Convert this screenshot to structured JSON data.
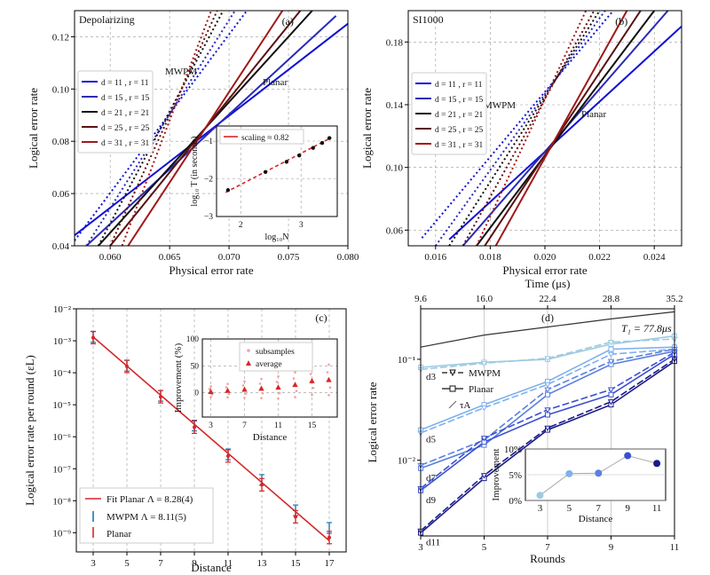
{
  "colors": {
    "dist": [
      "#1010d8",
      "#2a2ab8",
      "#111111",
      "#5a1010",
      "#a01818"
    ],
    "fit": "#d62728",
    "mwpm_err": "#1f77b4",
    "planar_err": "#d62728",
    "d_shades": [
      "#9ecae1",
      "#7fb0ee",
      "#5a7fe0",
      "#3a4fd0",
      "#1a1a8a"
    ],
    "t1": "#333333"
  },
  "chart_data": [
    {
      "id": "a",
      "type": "line",
      "panel_label": "(a)",
      "noise_label": "Depolarizing",
      "xlabel": "Physical error rate",
      "ylabel": "Logical error rate",
      "xlim": [
        0.057,
        0.08
      ],
      "ylim": [
        0.04,
        0.13
      ],
      "xticks": [
        0.06,
        0.065,
        0.07,
        0.075,
        0.08
      ],
      "xtick_labels": [
        "0.060",
        "0.065",
        "0.070",
        "0.075",
        "0.080"
      ],
      "yticks": [
        0.04,
        0.06,
        0.08,
        0.1,
        0.12
      ],
      "ytick_labels": [
        "0.04",
        "0.06",
        "0.08",
        "0.10",
        "0.12"
      ],
      "annotations": [
        "MWPM",
        "Planar"
      ],
      "legend": [
        "d = 11 , r = 11",
        "d = 15 , r = 15",
        "d = 21 , r = 21",
        "d = 25 , r = 25",
        "d = 31 , r = 31"
      ],
      "planar": [
        {
          "x": [
            0.057,
            0.08
          ],
          "y": [
            0.044,
            0.125
          ]
        },
        {
          "x": [
            0.058,
            0.079
          ],
          "y": [
            0.04,
            0.128
          ]
        },
        {
          "x": [
            0.059,
            0.077
          ],
          "y": [
            0.04,
            0.13
          ]
        },
        {
          "x": [
            0.06,
            0.076
          ],
          "y": [
            0.04,
            0.13
          ]
        },
        {
          "x": [
            0.0615,
            0.0745
          ],
          "y": [
            0.04,
            0.13
          ]
        }
      ],
      "mwpm": [
        {
          "x": [
            0.057,
            0.0715
          ],
          "y": [
            0.042,
            0.13
          ]
        },
        {
          "x": [
            0.058,
            0.0705
          ],
          "y": [
            0.04,
            0.13
          ]
        },
        {
          "x": [
            0.059,
            0.0695
          ],
          "y": [
            0.04,
            0.13
          ]
        },
        {
          "x": [
            0.06,
            0.069
          ],
          "y": [
            0.04,
            0.13
          ]
        },
        {
          "x": [
            0.061,
            0.0685
          ],
          "y": [
            0.04,
            0.13
          ]
        }
      ],
      "inset": {
        "legend": "scaling ≈ 0.82",
        "xlabel": "log₁₀N",
        "ylabel": "log₁₀ T (in seconds)",
        "xlim": [
          1.6,
          3.6
        ],
        "ylim": [
          -3,
          -0.6
        ],
        "xticks": [
          2,
          3
        ],
        "xtick_labels": [
          "2",
          "3"
        ],
        "yticks": [
          -3,
          -2,
          -1
        ],
        "ytick_labels": [
          "−3",
          "−2",
          "−1"
        ],
        "points_x": [
          1.79,
          2.41,
          2.76,
          2.97,
          3.2,
          3.35,
          3.47
        ],
        "points_y": [
          -2.3,
          -1.82,
          -1.55,
          -1.38,
          -1.18,
          -1.05,
          -0.92
        ],
        "fit_x": [
          1.75,
          3.5
        ],
        "fit_y": [
          -2.36,
          -0.91
        ]
      }
    },
    {
      "id": "b",
      "type": "line",
      "panel_label": "(b)",
      "noise_label": "SI1000",
      "xlabel": "Physical error rate",
      "ylabel": "Logical error rate",
      "xlim": [
        0.015,
        0.025
      ],
      "ylim": [
        0.05,
        0.2
      ],
      "xticks": [
        0.016,
        0.018,
        0.02,
        0.022,
        0.024
      ],
      "xtick_labels": [
        "0.016",
        "0.018",
        "0.020",
        "0.022",
        "0.024"
      ],
      "yticks": [
        0.06,
        0.1,
        0.14,
        0.18
      ],
      "ytick_labels": [
        "0.06",
        "0.10",
        "0.14",
        "0.18"
      ],
      "annotations": [
        "MWPM",
        "Planar"
      ],
      "legend": [
        "d = 11 , r = 11",
        "d = 15 , r = 15",
        "d = 21 , r = 21",
        "d = 25 , r = 25",
        "d = 31 , r = 31"
      ],
      "planar": [
        {
          "x": [
            0.0165,
            0.025
          ],
          "y": [
            0.054,
            0.19
          ]
        },
        {
          "x": [
            0.017,
            0.0245
          ],
          "y": [
            0.05,
            0.2
          ]
        },
        {
          "x": [
            0.0175,
            0.024
          ],
          "y": [
            0.05,
            0.2
          ]
        },
        {
          "x": [
            0.0178,
            0.0235
          ],
          "y": [
            0.05,
            0.2
          ]
        },
        {
          "x": [
            0.0182,
            0.023
          ],
          "y": [
            0.05,
            0.2
          ]
        }
      ],
      "mwpm": [
        {
          "x": [
            0.0155,
            0.0225
          ],
          "y": [
            0.055,
            0.2
          ]
        },
        {
          "x": [
            0.016,
            0.0222
          ],
          "y": [
            0.05,
            0.2
          ]
        },
        {
          "x": [
            0.0165,
            0.022
          ],
          "y": [
            0.05,
            0.2
          ]
        },
        {
          "x": [
            0.017,
            0.0218
          ],
          "y": [
            0.05,
            0.2
          ]
        },
        {
          "x": [
            0.0175,
            0.0215
          ],
          "y": [
            0.05,
            0.2
          ]
        }
      ]
    },
    {
      "id": "c",
      "type": "scatter",
      "panel_label": "(c)",
      "xlabel": "Distance",
      "ylabel": "Logical error rate per round (εL)",
      "xlim": [
        2,
        18
      ],
      "ylog": [
        -9.6,
        -2
      ],
      "xticks": [
        3,
        5,
        7,
        9,
        11,
        13,
        15,
        17
      ],
      "xtick_labels": [
        "3",
        "5",
        "7",
        "9",
        "11",
        "13",
        "15",
        "17"
      ],
      "ytick_exps": [
        -9,
        -8,
        -7,
        -6,
        -5,
        -4,
        -3,
        -2
      ],
      "ytick_labels": [
        "10⁻⁹",
        "10⁻⁸",
        "10⁻⁷",
        "10⁻⁶",
        "10⁻⁵",
        "10⁻⁴",
        "10⁻³",
        "10⁻²"
      ],
      "x": [
        3,
        5,
        7,
        9,
        11,
        13,
        15,
        17
      ],
      "planar_log": [
        -2.9,
        -3.8,
        -4.75,
        -5.7,
        -6.6,
        -7.5,
        -8.5,
        -9.15
      ],
      "mwpm_log": [
        -2.88,
        -3.78,
        -4.72,
        -5.65,
        -6.55,
        -7.35,
        -8.3,
        -8.85
      ],
      "fit_x": [
        3,
        17
      ],
      "fit_log": [
        -2.88,
        -9.25
      ],
      "legend": [
        "Fit Planar  Λ = 8.28(4)",
        "MWPM  Λ = 8.11(5)",
        "Planar"
      ],
      "inset": {
        "legend": [
          "subsamples",
          "average"
        ],
        "xlabel": "Distance",
        "ylabel": "Improvement (%)",
        "xlim": [
          2,
          18
        ],
        "ylim": [
          -45,
          100
        ],
        "xticks": [
          3,
          7,
          11,
          15
        ],
        "xtick_labels": [
          "3",
          "7",
          "11",
          "15"
        ],
        "yticks": [
          0,
          50,
          100
        ],
        "ytick_labels": [
          "0",
          "50",
          "100"
        ],
        "avg_x": [
          3,
          5,
          7,
          9,
          11,
          13,
          15,
          17
        ],
        "avg_y": [
          2,
          4,
          6,
          8,
          10,
          15,
          22,
          24
        ]
      }
    },
    {
      "id": "d",
      "type": "line",
      "panel_label": "(d)",
      "xlabel": "Rounds",
      "ylabel": "Logical error rate",
      "top_xlabel": "Time (μs)",
      "xlim": [
        3,
        11
      ],
      "ylog": [
        -2.75,
        -0.5
      ],
      "xticks": [
        3,
        5,
        7,
        9,
        11
      ],
      "xtick_labels": [
        "3",
        "5",
        "7",
        "9",
        "11"
      ],
      "top_ticks": [
        "9.6",
        "16.0",
        "22.4",
        "28.8",
        "35.2"
      ],
      "ytick_exps": [
        -2,
        -1
      ],
      "ytick_labels": [
        "10⁻²",
        "10⁻¹"
      ],
      "t1_label": "T₁ = 77.8μs",
      "t1_log": [
        -0.88,
        -0.76,
        -0.68,
        -0.6,
        -0.53
      ],
      "x": [
        3,
        5,
        7,
        9,
        11
      ],
      "series": [
        {
          "name": "d3",
          "planar_log": [
            -1.08,
            -1.03,
            -1.0,
            -0.85,
            -0.77
          ],
          "mwpm_log": [
            -1.1,
            -1.04,
            -0.99,
            -0.83,
            -0.8
          ]
        },
        {
          "name": "d5",
          "planar_log": [
            -1.7,
            -1.45,
            -1.22,
            -0.9,
            -0.88
          ],
          "mwpm_log": [
            -1.73,
            -1.48,
            -1.25,
            -0.95,
            -0.9
          ]
        },
        {
          "name": "d7",
          "planar_log": [
            -2.08,
            -1.85,
            -1.35,
            -1.05,
            -0.92
          ],
          "mwpm_log": [
            -2.05,
            -1.8,
            -1.3,
            -1.02,
            -0.9
          ]
        },
        {
          "name": "d9",
          "planar_log": [
            -2.3,
            -1.82,
            -1.55,
            -1.35,
            -0.95
          ],
          "mwpm_log": [
            -2.28,
            -1.78,
            -1.5,
            -1.3,
            -0.93
          ]
        },
        {
          "name": "d11",
          "planar_log": [
            -2.72,
            -2.18,
            -1.7,
            -1.45,
            -1.02
          ],
          "mwpm_log": [
            -2.7,
            -2.15,
            -1.68,
            -1.42,
            -1.0
          ]
        }
      ],
      "legend": [
        "MWPM",
        "Planar",
        "τA"
      ],
      "inset": {
        "xlabel": "Distance",
        "ylabel": "Improvement",
        "yticks": [
          0,
          5,
          10
        ],
        "ytick_labels": [
          "0%",
          "5%",
          "10%"
        ],
        "xticks": [
          3,
          5,
          7,
          9,
          11
        ],
        "xtick_labels": [
          "3",
          "5",
          "7",
          "9",
          "11"
        ],
        "x": [
          3,
          5,
          7,
          9,
          11
        ],
        "y": [
          1,
          5.2,
          5.3,
          8.7,
          7.2
        ],
        "ylim": [
          0,
          10
        ]
      }
    }
  ]
}
